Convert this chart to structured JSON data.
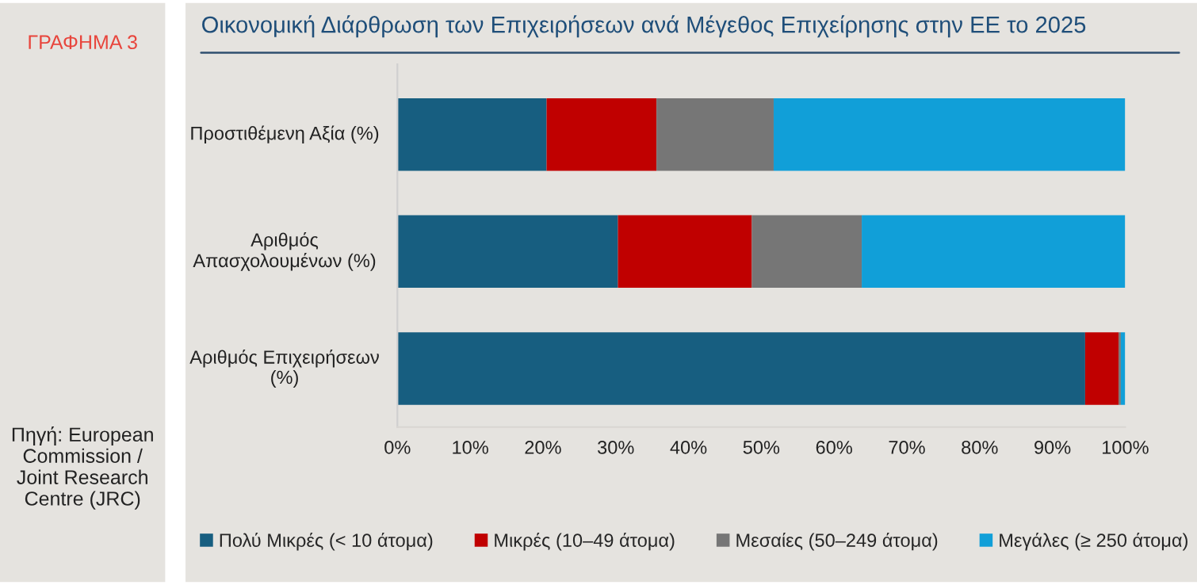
{
  "chart_data": {
    "type": "bar",
    "orientation": "horizontal",
    "stacked": true,
    "title": "Οικονομική Διάρθρωση των Επιχειρήσεων ανά Μέγεθος Επιχείρησης στην ΕΕ το 2025",
    "annotations": [
      "ΓΡΑΦΗΜΑ 3",
      "Πηγή: European Commission / Joint Research Centre (JRC)"
    ],
    "categories": [
      "Προστιθέμενη Αξία (%)",
      "Αριθμός Απασχολουμένων (%)",
      "Αριθμός Επιχειρήσεων (%)"
    ],
    "series": [
      {
        "name": "Πολύ Μικρές (< 10 άτομα)",
        "color": "#175e80",
        "values": [
          20.5,
          30.3,
          94.5
        ]
      },
      {
        "name": "Μικρές (10–49 άτομα)",
        "color": "#c00000",
        "values": [
          15.1,
          18.4,
          4.6
        ]
      },
      {
        "name": "Μεσαίες (50–249 άτομα)",
        "color": "#767676",
        "values": [
          16.1,
          15.1,
          0.3
        ]
      },
      {
        "name": "Μεγάλες (≥ 250 άτομα)",
        "color": "#119fd8",
        "values": [
          48.3,
          36.2,
          0.6
        ]
      }
    ],
    "xlim": [
      0,
      100
    ],
    "xticks": [
      {
        "value": 0,
        "label": "0%"
      },
      {
        "value": 10,
        "label": "10%"
      },
      {
        "value": 20,
        "label": "20%"
      },
      {
        "value": 30,
        "label": "30%"
      },
      {
        "value": 40,
        "label": "40%"
      },
      {
        "value": 50,
        "label": "50%"
      },
      {
        "value": 60,
        "label": "60%"
      },
      {
        "value": 70,
        "label": "70%"
      },
      {
        "value": 80,
        "label": "80%"
      },
      {
        "value": 90,
        "label": "90%"
      },
      {
        "value": 100,
        "label": "100%"
      }
    ],
    "grid": false,
    "legend": "bottom"
  }
}
